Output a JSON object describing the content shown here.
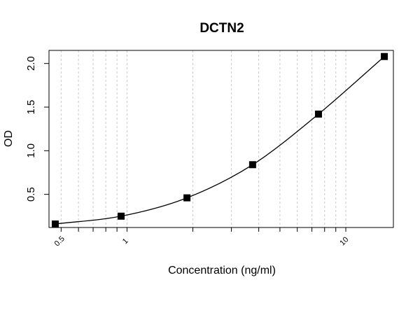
{
  "chart_data": {
    "type": "scatter",
    "title": "DCTN2",
    "xlabel": "Concentration (ng/ml)",
    "ylabel": "OD",
    "x_scale": "log",
    "xlim": [
      0.44,
      16.5
    ],
    "ylim": [
      0.12,
      2.15
    ],
    "xticks": [
      {
        "value": 0.5,
        "label": "0.5"
      },
      {
        "value": 1,
        "label": "1"
      },
      {
        "value": 10,
        "label": "10"
      }
    ],
    "yticks": [
      {
        "value": 0.5,
        "label": "0.5"
      },
      {
        "value": 1.0,
        "label": "1.0"
      },
      {
        "value": 1.5,
        "label": "1.5"
      },
      {
        "value": 2.0,
        "label": "2.0"
      }
    ],
    "x_gridlines": [
      0.5,
      0.6,
      0.7,
      0.8,
      0.9,
      1,
      2,
      3,
      4,
      5,
      6,
      7,
      8,
      9,
      10
    ],
    "grid": true,
    "legend": false,
    "marker": "square",
    "marker_color": "#000000",
    "fit_line": true,
    "series": [
      {
        "x": [
          0.47,
          0.94,
          1.88,
          3.75,
          7.5,
          15
        ],
        "y": [
          0.16,
          0.25,
          0.46,
          0.84,
          1.42,
          2.08
        ]
      }
    ]
  }
}
